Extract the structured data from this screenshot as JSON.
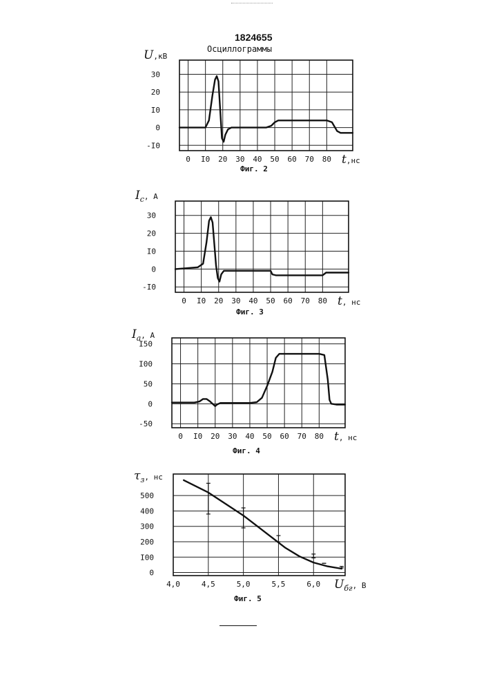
{
  "header": {
    "patent_number": "1824655",
    "subtitle": "Осциллограммы"
  },
  "chart_data": [
    {
      "id": "fig2",
      "type": "line",
      "caption": "Фиг. 2",
      "ylabel": "U",
      "yunit": ",кВ",
      "xlabel": "t",
      "xunit": ",нс",
      "xlim": [
        -5,
        95
      ],
      "ylim": [
        -13,
        38
      ],
      "xticks": [
        0,
        10,
        20,
        30,
        40,
        50,
        60,
        70,
        80
      ],
      "xtick_labels": [
        "0",
        "I0",
        "20",
        "30",
        "40",
        "50",
        "60",
        "70",
        "80"
      ],
      "yticks": [
        30,
        20,
        10,
        0,
        -10
      ],
      "ytick_labels": [
        "30",
        "20",
        "I0",
        "0",
        "-I0"
      ],
      "grid": true,
      "series": [
        {
          "points": [
            [
              -5,
              0
            ],
            [
              10,
              0
            ],
            [
              12,
              4
            ],
            [
              14,
              18
            ],
            [
              15.5,
              27
            ],
            [
              16.5,
              29
            ],
            [
              17.5,
              26
            ],
            [
              18.5,
              10
            ],
            [
              19.5,
              -6
            ],
            [
              20.5,
              -8
            ],
            [
              21.5,
              -4
            ],
            [
              23,
              -1
            ],
            [
              25,
              0
            ],
            [
              45,
              0
            ],
            [
              48,
              1
            ],
            [
              50,
              3
            ],
            [
              52,
              4
            ],
            [
              60,
              4
            ],
            [
              70,
              4
            ],
            [
              80,
              4
            ],
            [
              83,
              3
            ],
            [
              86,
              -2
            ],
            [
              88,
              -3
            ],
            [
              95,
              -3
            ]
          ]
        }
      ]
    },
    {
      "id": "fig3",
      "type": "line",
      "caption": "Фиг. 3",
      "ylabel": "I",
      "ysub": "c",
      "yunit": ", А",
      "xlabel": "t",
      "xunit": ", нс",
      "xlim": [
        -5,
        95
      ],
      "ylim": [
        -13,
        38
      ],
      "xticks": [
        0,
        10,
        20,
        30,
        40,
        50,
        60,
        70,
        80
      ],
      "xtick_labels": [
        "0",
        "I0",
        "20",
        "30",
        "40",
        "50",
        "60",
        "70",
        "80"
      ],
      "yticks": [
        30,
        20,
        10,
        0,
        -10
      ],
      "ytick_labels": [
        "30",
        "20",
        "I0",
        "0",
        "-I0"
      ],
      "grid": true,
      "series": [
        {
          "points": [
            [
              -5,
              0
            ],
            [
              8,
              1
            ],
            [
              11,
              3
            ],
            [
              13,
              15
            ],
            [
              14.5,
              27
            ],
            [
              15.5,
              29
            ],
            [
              16.5,
              26
            ],
            [
              17.5,
              14
            ],
            [
              18.5,
              2
            ],
            [
              19.5,
              -5
            ],
            [
              20.5,
              -7
            ],
            [
              21.5,
              -3
            ],
            [
              23,
              -1
            ],
            [
              30,
              -1
            ],
            [
              50,
              -1
            ],
            [
              51,
              -3
            ],
            [
              53,
              -3.5
            ],
            [
              70,
              -3.5
            ],
            [
              80,
              -3.5
            ],
            [
              82,
              -2
            ],
            [
              84,
              -2
            ],
            [
              95,
              -2
            ]
          ]
        }
      ]
    },
    {
      "id": "fig4",
      "type": "line",
      "caption": "Фиг. 4",
      "ylabel": "I",
      "ysub": "a",
      "yunit": ", А",
      "xlabel": "t",
      "xunit": ", нс",
      "xlim": [
        -5,
        95
      ],
      "ylim": [
        -60,
        165
      ],
      "xticks": [
        0,
        10,
        20,
        30,
        40,
        50,
        60,
        70,
        80
      ],
      "xtick_labels": [
        "0",
        "I0",
        "20",
        "30",
        "40",
        "50",
        "60",
        "70",
        "80"
      ],
      "yticks": [
        150,
        100,
        50,
        0,
        -50
      ],
      "ytick_labels": [
        "I50",
        "I00",
        "50",
        "0",
        "-50"
      ],
      "grid": true,
      "series": [
        {
          "points": [
            [
              -5,
              3
            ],
            [
              8,
              3
            ],
            [
              11,
              6
            ],
            [
              13,
              12
            ],
            [
              15,
              12
            ],
            [
              17,
              6
            ],
            [
              19,
              -2
            ],
            [
              20,
              -6
            ],
            [
              21,
              -2
            ],
            [
              23,
              2
            ],
            [
              40,
              2
            ],
            [
              44,
              4
            ],
            [
              47,
              15
            ],
            [
              50,
              45
            ],
            [
              53,
              80
            ],
            [
              55,
              115
            ],
            [
              57,
              125
            ],
            [
              60,
              125
            ],
            [
              70,
              125
            ],
            [
              80,
              125
            ],
            [
              83,
              122
            ],
            [
              85,
              60
            ],
            [
              86,
              10
            ],
            [
              87,
              0
            ],
            [
              90,
              -2
            ],
            [
              95,
              -2
            ]
          ]
        }
      ]
    },
    {
      "id": "fig5",
      "type": "line",
      "caption": "Фиг. 5",
      "ylabel": "τ",
      "ysub": "з",
      "yunit": ", нс",
      "xlabel": "U",
      "xsub": "бг",
      "xunit": ", В",
      "xlim": [
        4.0,
        6.45
      ],
      "ylim": [
        -20,
        640
      ],
      "xticks": [
        4.0,
        4.5,
        5.0,
        5.5,
        6.0
      ],
      "xtick_labels": [
        "4,0",
        "4,5",
        "5,0",
        "5,5",
        "6,0"
      ],
      "yticks": [
        500,
        400,
        300,
        200,
        100,
        0
      ],
      "ytick_labels": [
        "500",
        "400",
        "300",
        "200",
        "I00",
        "0"
      ],
      "grid": true,
      "series": [
        {
          "points": [
            [
              4.15,
              600
            ],
            [
              4.5,
              520
            ],
            [
              4.8,
              430
            ],
            [
              5.0,
              370
            ],
            [
              5.2,
              300
            ],
            [
              5.4,
              230
            ],
            [
              5.6,
              160
            ],
            [
              5.8,
              105
            ],
            [
              6.0,
              65
            ],
            [
              6.2,
              40
            ],
            [
              6.4,
              25
            ]
          ]
        }
      ],
      "error_bars": [
        {
          "x": 4.5,
          "lo": 380,
          "hi": 580
        },
        {
          "x": 5.0,
          "lo": 290,
          "hi": 420
        },
        {
          "x": 5.5,
          "lo": 200,
          "hi": 240
        },
        {
          "x": 6.0,
          "lo": 95,
          "hi": 120
        },
        {
          "x": 6.15,
          "lo": 60,
          "hi": 60
        },
        {
          "x": 6.4,
          "lo": 30,
          "hi": 40
        }
      ]
    }
  ]
}
